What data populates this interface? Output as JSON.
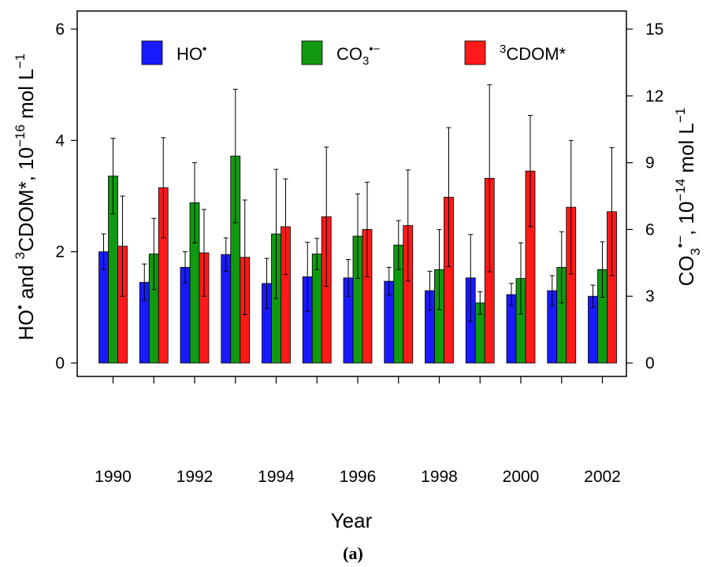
{
  "chart_data": {
    "type": "bar",
    "categories": [
      "1990",
      "1991",
      "1992",
      "1993",
      "1994",
      "1995",
      "1996",
      "1997",
      "1998",
      "1999",
      "2000",
      "2001",
      "2002"
    ],
    "x_tick_labels": [
      "1990",
      "1992",
      "1994",
      "1996",
      "1998",
      "2000",
      "2002"
    ],
    "xlabel": "Year",
    "ylabel_left": {
      "pre": "HO",
      "mid": " and ",
      "sup3": "3",
      "cdom": "CDOM*, 10",
      "exp": "−16",
      "unit": " mol L",
      "unitexp": "−1"
    },
    "ylabel_right": {
      "co": "CO",
      "sub": "3",
      "rad": "•−",
      "mid": ", 10",
      "exp": "−14",
      "unit": " mol L",
      "unitexp": "−1"
    },
    "ylim_left": [
      0,
      6
    ],
    "yticks_left": [
      "0",
      "2",
      "4",
      "6"
    ],
    "ylim_right": [
      0,
      15
    ],
    "yticks_right": [
      "0",
      "3",
      "6",
      "9",
      "12",
      "15"
    ],
    "legend_position": "top",
    "series": [
      {
        "name": "HO•",
        "label_text": "HO",
        "label_sup": "•",
        "axis": "left",
        "color": "#1a1aff",
        "values": [
          2.0,
          1.45,
          1.72,
          1.95,
          1.43,
          1.55,
          1.53,
          1.47,
          1.3,
          1.53,
          1.23,
          1.3,
          1.2
        ],
        "errors": [
          0.32,
          0.33,
          0.28,
          0.3,
          0.45,
          0.62,
          0.33,
          0.25,
          0.35,
          0.78,
          0.2,
          0.27,
          0.2
        ]
      },
      {
        "name": "CO3•−",
        "label_text": "CO",
        "label_sub": "3",
        "label_sup": "•−",
        "axis": "right",
        "color": "#119911",
        "values": [
          8.4,
          4.9,
          7.2,
          9.3,
          5.8,
          4.9,
          5.7,
          5.3,
          4.2,
          2.7,
          3.8,
          4.3,
          4.2
        ],
        "errors": [
          1.7,
          1.6,
          1.8,
          3.0,
          2.9,
          0.7,
          1.9,
          1.1,
          1.8,
          0.5,
          1.6,
          1.6,
          1.25
        ]
      },
      {
        "name": "3CDOM*",
        "label_pre_sup": "3",
        "label_text": "CDOM*",
        "axis": "left",
        "color": "#ff1a1a",
        "values": [
          2.1,
          3.15,
          1.98,
          1.9,
          2.45,
          2.63,
          2.4,
          2.47,
          2.98,
          3.32,
          3.45,
          2.8,
          2.72
        ],
        "errors": [
          0.9,
          0.9,
          0.78,
          1.03,
          0.86,
          1.25,
          0.85,
          1.0,
          1.25,
          1.68,
          1.0,
          1.2,
          1.15
        ]
      }
    ]
  },
  "caption": "(a)"
}
